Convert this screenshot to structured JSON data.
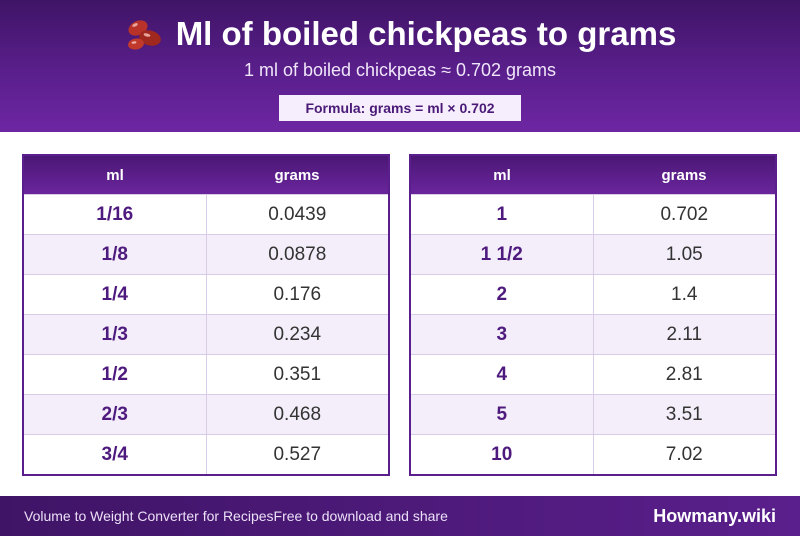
{
  "header": {
    "title": "Ml of boiled chickpeas to grams",
    "icon": "beans-icon",
    "subtitle": "1 ml of boiled chickpeas ≈ 0.702 grams",
    "formula": "Formula: grams = ml × 0.702"
  },
  "columns": {
    "ml": "ml",
    "grams": "grams"
  },
  "left_rows": [
    {
      "ml": "1/16",
      "grams": "0.0439"
    },
    {
      "ml": "1/8",
      "grams": "0.0878"
    },
    {
      "ml": "1/4",
      "grams": "0.176"
    },
    {
      "ml": "1/3",
      "grams": "0.234"
    },
    {
      "ml": "1/2",
      "grams": "0.351"
    },
    {
      "ml": "2/3",
      "grams": "0.468"
    },
    {
      "ml": "3/4",
      "grams": "0.527"
    }
  ],
  "right_rows": [
    {
      "ml": "1",
      "grams": "0.702"
    },
    {
      "ml": "1 1/2",
      "grams": "1.05"
    },
    {
      "ml": "2",
      "grams": "1.4"
    },
    {
      "ml": "3",
      "grams": "2.11"
    },
    {
      "ml": "4",
      "grams": "2.81"
    },
    {
      "ml": "5",
      "grams": "3.51"
    },
    {
      "ml": "10",
      "grams": "7.02"
    }
  ],
  "footer": {
    "left_a": "Volume to Weight Converter for Recipes",
    "left_b": "Free to download and share",
    "brand": "Howmany.wiki"
  },
  "colors": {
    "accent": "#5a1f8c",
    "bean": "#b8322a"
  }
}
